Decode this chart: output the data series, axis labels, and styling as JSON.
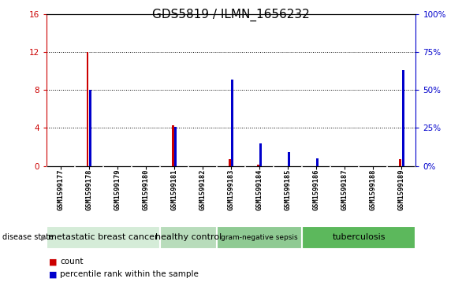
{
  "title": "GDS5819 / ILMN_1656232",
  "samples": [
    "GSM1599177",
    "GSM1599178",
    "GSM1599179",
    "GSM1599180",
    "GSM1599181",
    "GSM1599182",
    "GSM1599183",
    "GSM1599184",
    "GSM1599185",
    "GSM1599186",
    "GSM1599187",
    "GSM1599188",
    "GSM1599189"
  ],
  "count_values": [
    0,
    12,
    0,
    0,
    4.3,
    0,
    0.7,
    0.15,
    0,
    0,
    0,
    0,
    0.7
  ],
  "percentile_values": [
    0,
    50,
    0,
    0,
    26,
    0,
    57,
    15,
    9,
    5,
    0,
    0,
    63
  ],
  "left_ylim": [
    0,
    16
  ],
  "left_yticks": [
    0,
    4,
    8,
    12,
    16
  ],
  "right_ylim": [
    0,
    100
  ],
  "right_yticks": [
    0,
    25,
    50,
    75,
    100
  ],
  "right_yticklabels": [
    "0%",
    "25%",
    "50%",
    "75%",
    "100%"
  ],
  "disease_groups": [
    {
      "label": "metastatic breast cancer",
      "start": 0,
      "end": 3,
      "color": "#d5ecd8"
    },
    {
      "label": "healthy control",
      "start": 4,
      "end": 5,
      "color": "#b8dcbb"
    },
    {
      "label": "gram-negative sepsis",
      "start": 6,
      "end": 8,
      "color": "#8fca93"
    },
    {
      "label": "tuberculosis",
      "start": 9,
      "end": 12,
      "color": "#5cb85c"
    }
  ],
  "bar_color_red": "#cc0000",
  "bar_color_blue": "#0000cc",
  "tick_label_color_left": "#cc0000",
  "tick_label_color_right": "#0000cc",
  "bg_color": "#ffffff",
  "sample_bg_color": "#d3d3d3",
  "grid_color": "#000000",
  "title_fontsize": 11,
  "tick_fontsize": 7.5,
  "label_fontsize": 7.5
}
